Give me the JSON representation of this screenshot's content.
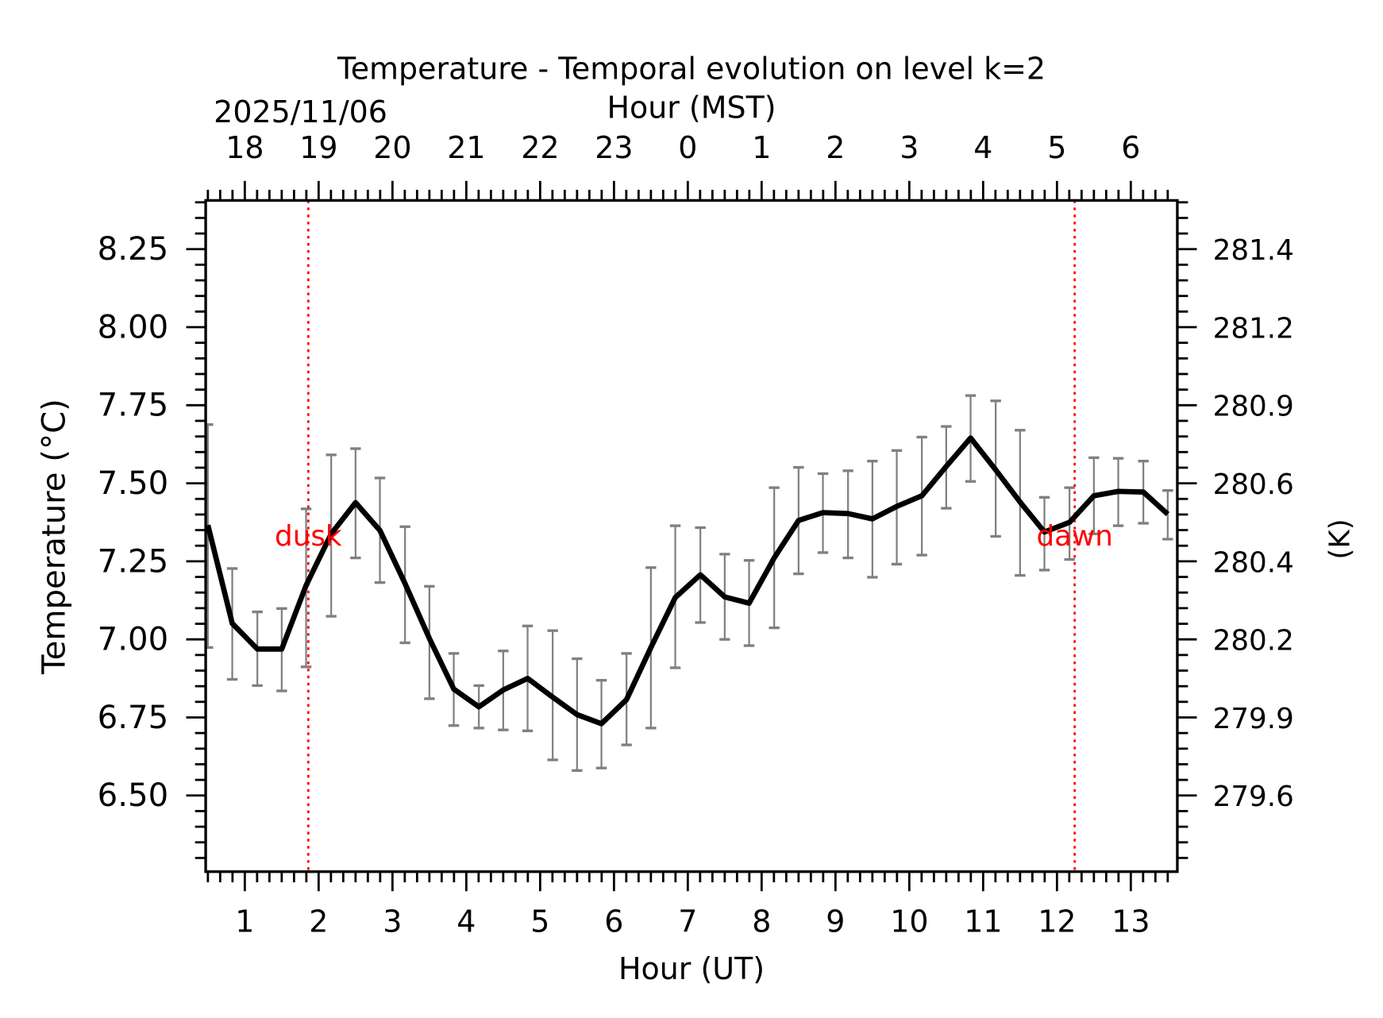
{
  "chart_data": {
    "type": "line",
    "title": "Temperature - Temporal evolution on level k=2",
    "xlabel": "Hour (UT)",
    "ylabel": "Temperature (°C)",
    "top_xlabel": "Hour (MST)",
    "top_date_label": "2025/11/06",
    "right_ylabel": "(K)",
    "xlim": [
      0.47,
      13.63
    ],
    "ylim": [
      6.256,
      8.406
    ],
    "x_ticks": [
      1,
      2,
      3,
      4,
      5,
      6,
      7,
      8,
      9,
      10,
      11,
      12,
      13
    ],
    "x_tick_labels": [
      "1",
      "2",
      "3",
      "4",
      "5",
      "6",
      "7",
      "8",
      "9",
      "10",
      "11",
      "12",
      "13"
    ],
    "top_tick_labels": [
      "18",
      "19",
      "20",
      "21",
      "22",
      "23",
      "0",
      "1",
      "2",
      "3",
      "4",
      "5",
      "6"
    ],
    "y_ticks": [
      6.5,
      6.75,
      7.0,
      7.25,
      7.5,
      7.75,
      8.0,
      8.25
    ],
    "y_tick_labels": [
      "6.50",
      "6.75",
      "7.00",
      "7.25",
      "7.50",
      "7.75",
      "8.00",
      "8.25"
    ],
    "right_tick_labels": [
      "279.6",
      "279.9",
      "280.2",
      "280.4",
      "280.6",
      "280.9",
      "281.2",
      "281.4"
    ],
    "grid": false,
    "line_color": "#000000",
    "errorbar_color": "#808080",
    "annotation_color": "#ff0000",
    "annotations": [
      {
        "label": "dusk",
        "x": 1.86
      },
      {
        "label": "dawn",
        "x": 12.24
      }
    ],
    "series": [
      {
        "x": [
          0.5,
          0.83,
          1.17,
          1.5,
          1.83,
          2.17,
          2.5,
          2.83,
          3.17,
          3.5,
          3.83,
          4.17,
          4.5,
          4.83,
          5.17,
          5.5,
          5.83,
          6.17,
          6.5,
          6.83,
          7.17,
          7.5,
          7.83,
          8.17,
          8.5,
          8.83,
          9.17,
          9.5,
          9.83,
          10.17,
          10.5,
          10.83,
          11.17,
          11.5,
          11.83,
          12.17,
          12.5,
          12.83,
          13.17,
          13.5
        ],
        "y": [
          7.366,
          7.051,
          6.969,
          6.969,
          7.173,
          7.338,
          7.438,
          7.349,
          7.179,
          7.003,
          6.841,
          6.784,
          6.838,
          6.875,
          6.815,
          6.759,
          6.73,
          6.807,
          6.974,
          7.134,
          7.207,
          7.136,
          7.116,
          7.261,
          7.381,
          7.406,
          7.403,
          7.386,
          7.426,
          7.46,
          7.554,
          7.645,
          7.543,
          7.44,
          7.344,
          7.375,
          7.46,
          7.474,
          7.472,
          7.401
        ],
        "err_high": [
          7.688,
          7.227,
          7.088,
          7.099,
          7.418,
          7.591,
          7.611,
          7.517,
          7.361,
          7.17,
          6.955,
          6.852,
          6.963,
          7.043,
          7.028,
          6.938,
          6.869,
          6.955,
          7.23,
          7.364,
          7.358,
          7.273,
          7.253,
          7.486,
          7.551,
          7.531,
          7.54,
          7.571,
          7.605,
          7.648,
          7.682,
          7.781,
          7.764,
          7.67,
          7.455,
          7.486,
          7.582,
          7.58,
          7.571,
          7.477
        ],
        "err_low": [
          6.974,
          6.872,
          6.852,
          6.835,
          6.912,
          7.074,
          7.261,
          7.182,
          6.989,
          6.81,
          6.724,
          6.716,
          6.71,
          6.707,
          6.614,
          6.58,
          6.588,
          6.662,
          6.716,
          6.909,
          7.054,
          7.0,
          6.98,
          7.037,
          7.21,
          7.278,
          7.261,
          7.199,
          7.241,
          7.27,
          7.42,
          7.506,
          7.33,
          7.205,
          7.222,
          7.256,
          7.338,
          7.364,
          7.372,
          7.321
        ]
      }
    ]
  }
}
